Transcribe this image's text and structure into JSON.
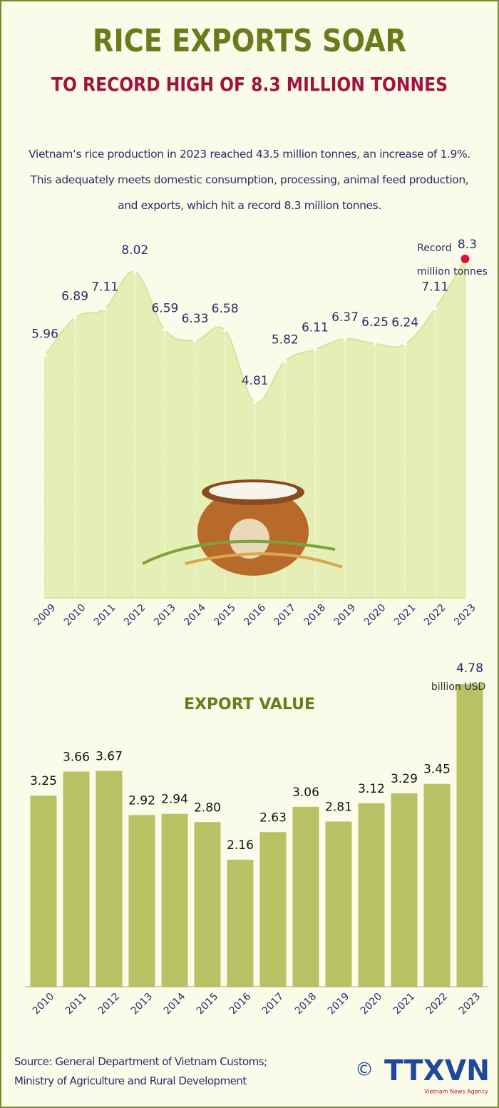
{
  "header": {
    "title": "RICE EXPORTS SOAR",
    "subtitle": "TO RECORD HIGH OF 8.3 MILLION TONNES"
  },
  "intro": "Vietnam’s rice production in 2023 reached 43.5 million tonnes, an increase of 1.9%. This adequately meets domestic consumption, processing, animal feed production, and exports, which hit a record 8.3 million tonnes.",
  "chart_data": [
    {
      "type": "area",
      "categories": [
        "2009",
        "2010",
        "2011",
        "2012",
        "2013",
        "2014",
        "2015",
        "2016",
        "2017",
        "2018",
        "2019",
        "2020",
        "2021",
        "2022",
        "2023"
      ],
      "values": [
        5.96,
        6.89,
        7.11,
        8.02,
        6.59,
        6.33,
        6.58,
        4.81,
        5.82,
        6.11,
        6.37,
        6.25,
        6.24,
        7.11,
        8.3
      ],
      "color": "#e5eeb4",
      "highlight_color": "#e0103c",
      "annotations": [
        "Record",
        "million tonnes"
      ],
      "ylim": [
        0,
        9
      ]
    },
    {
      "type": "bar",
      "title": "EXPORT VALUE",
      "categories": [
        "2010",
        "2011",
        "2012",
        "2013",
        "2014",
        "2015",
        "2016",
        "2017",
        "2018",
        "2019",
        "2020",
        "2021",
        "2022",
        "2023"
      ],
      "values": [
        3.25,
        3.66,
        3.67,
        2.92,
        2.94,
        2.8,
        2.16,
        2.63,
        3.06,
        2.81,
        3.12,
        3.29,
        3.45,
        4.78
      ],
      "value_labels": [
        "3.25",
        "3.66",
        "3.67",
        "2.92",
        "2.94",
        "2.80",
        "2.16",
        "2.63",
        "3.06",
        "2.81",
        "3.12",
        "3.29",
        "3.45",
        "4.78"
      ],
      "color": "#b6c264",
      "annotations": [
        "billion USD"
      ],
      "ylim": [
        0,
        5
      ]
    }
  ],
  "source": [
    "Source: General Department of Vietnam Customs;",
    "Ministry of Agriculture and Rural Development"
  ],
  "logo": {
    "symbol": "©",
    "text": "TTXVN",
    "subtext": "Vietnam News Agency"
  }
}
